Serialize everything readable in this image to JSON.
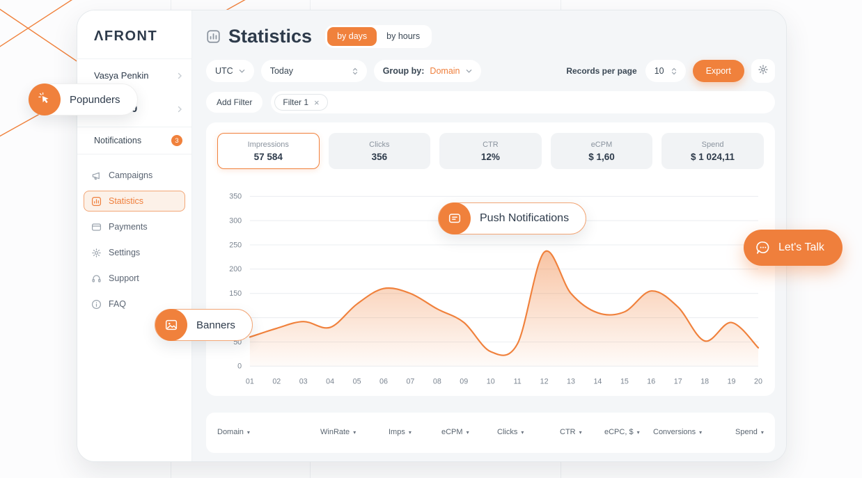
{
  "accent": "#F0813C",
  "sidebar": {
    "logo": "ΛFRONT",
    "user_name": "Vasya Penkin",
    "balance": "$ 10 000",
    "notifications_label": "Notifications",
    "notifications_badge": "3",
    "items": [
      {
        "label": "Campaigns",
        "icon": "campaigns-icon",
        "active": false
      },
      {
        "label": "Statistics",
        "icon": "statistics-icon",
        "active": true
      },
      {
        "label": "Payments",
        "icon": "payments-icon",
        "active": false
      },
      {
        "label": "Settings",
        "icon": "settings-icon",
        "active": false
      },
      {
        "label": "Support",
        "icon": "support-icon",
        "active": false
      },
      {
        "label": "FAQ",
        "icon": "faq-icon",
        "active": false
      }
    ]
  },
  "header": {
    "title": "Statistics",
    "toggle": [
      {
        "label": "by days",
        "active": true
      },
      {
        "label": "by hours",
        "active": false
      }
    ]
  },
  "toolbar": {
    "timezone": "UTC",
    "date_range": "Today",
    "group_by_label": "Group by:",
    "group_by_value": "Domain",
    "records_per_page_label": "Records per page",
    "records_per_page_value": "10",
    "export_label": "Export"
  },
  "filters": {
    "add_filter_label": "Add Filter",
    "chips": [
      {
        "label": "Filter 1"
      }
    ]
  },
  "stat_cards": [
    {
      "label": "Impressions",
      "value": "57 584",
      "selected": true
    },
    {
      "label": "Clicks",
      "value": "356",
      "selected": false
    },
    {
      "label": "CTR",
      "value": "12%",
      "selected": false
    },
    {
      "label": "eCPM",
      "value": "$ 1,60",
      "selected": false
    },
    {
      "label": "Spend",
      "value": "$ 1 024,11",
      "selected": false
    }
  ],
  "chart_data": {
    "type": "area",
    "title": "",
    "xlabel": "",
    "ylabel": "",
    "x": [
      "01",
      "02",
      "03",
      "04",
      "05",
      "06",
      "07",
      "08",
      "09",
      "10",
      "11",
      "12",
      "13",
      "14",
      "15",
      "16",
      "17",
      "18",
      "19",
      "20"
    ],
    "values": [
      60,
      78,
      92,
      80,
      128,
      160,
      150,
      118,
      90,
      30,
      46,
      235,
      150,
      110,
      112,
      155,
      122,
      52,
      90,
      38
    ],
    "ylim": [
      0,
      350
    ],
    "yticks": [
      0,
      50,
      100,
      150,
      200,
      250,
      300,
      350
    ],
    "grid": true,
    "legend": false,
    "line_color": "#F0813C"
  },
  "overlays": {
    "popunders_label": "Popunders",
    "banners_label": "Banners",
    "push_label": "Push Notifications",
    "lets_talk_label": "Let's Talk"
  },
  "table": {
    "columns": [
      "Domain",
      "WinRate",
      "Imps",
      "eCPM",
      "Clicks",
      "CTR",
      "eCPC, $",
      "Conversions",
      "Spend"
    ]
  }
}
